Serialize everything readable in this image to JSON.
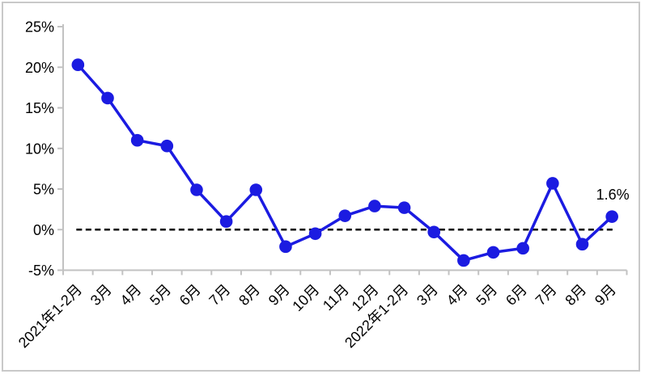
{
  "chart_data": {
    "type": "line",
    "title": "",
    "xlabel": "",
    "ylabel": "",
    "categories": [
      "2021年1-2月",
      "3月",
      "4月",
      "5月",
      "6月",
      "7月",
      "8月",
      "9月",
      "10月",
      "11月",
      "12月",
      "2022年1-2月",
      "3月",
      "4月",
      "5月",
      "6月",
      "7月",
      "8月",
      "9月"
    ],
    "values": [
      20.3,
      16.2,
      11.0,
      10.3,
      4.9,
      1.0,
      4.9,
      -2.1,
      -0.5,
      1.7,
      2.9,
      2.7,
      -0.3,
      -3.8,
      -2.8,
      -2.3,
      5.7,
      -1.8,
      1.6
    ],
    "ylim": [
      -5,
      25
    ],
    "ytick_step": 5,
    "ytick_labels": [
      "-5%",
      "0%",
      "5%",
      "10%",
      "15%",
      "20%",
      "25%"
    ],
    "x_tick_rotation_deg": 45,
    "grid": false,
    "legend": "none",
    "zero_line": {
      "style": "dashed",
      "color": "#000000"
    },
    "annotation": {
      "text": "1.6%",
      "category": "9月",
      "category_index": 18,
      "value": 1.6
    },
    "marker": {
      "shape": "circle",
      "radius_px": 7.8,
      "color": "#1b1be1"
    },
    "colors": {
      "line": "#1b1be1",
      "marker": "#1b1be1",
      "axis": "#c2c2c2",
      "label": "#000000",
      "frame_border": "#c9c9c9",
      "background": "#ffffff"
    }
  }
}
